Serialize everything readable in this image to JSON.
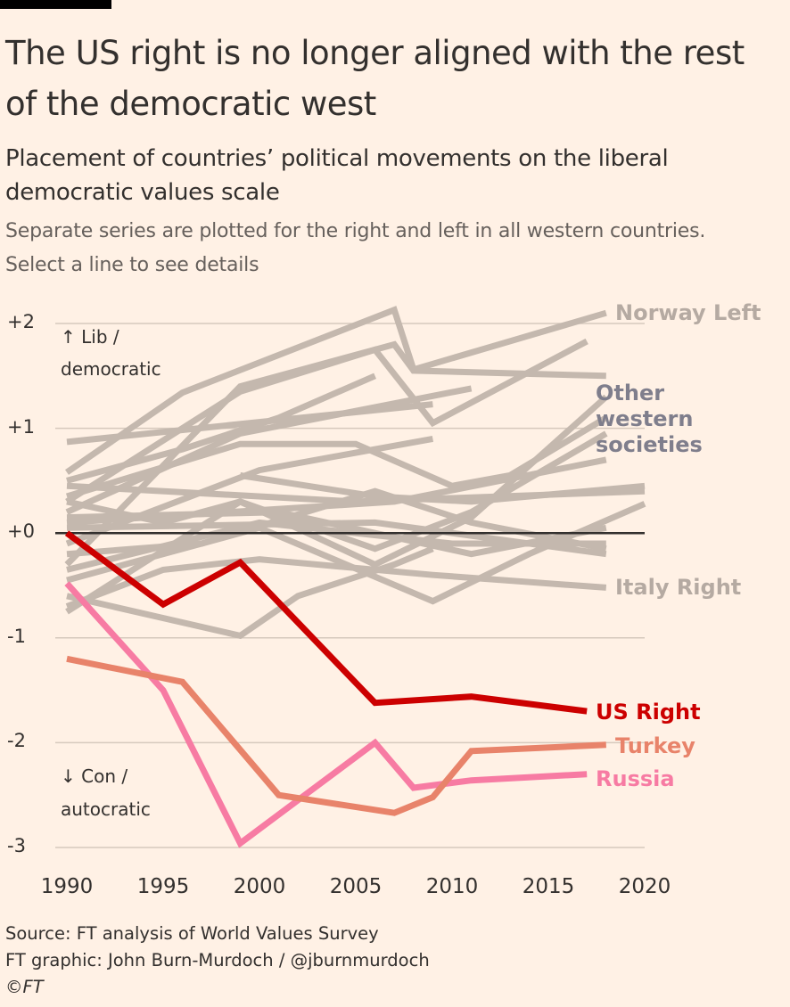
{
  "title_lines": [
    "The US right is no longer aligned with the rest",
    "of the democratic west"
  ],
  "subtitle_lines": [
    "Placement of countries’ political movements on the liberal",
    "democratic values scale"
  ],
  "note_lines": [
    "Separate series are plotted for the right and left in all western countries.",
    "Select a line to see details"
  ],
  "annotations": {
    "up": "↑ Lib /",
    "up2": "democratic",
    "down": "↓ Con /",
    "down2": "autocratic"
  },
  "footer": {
    "source": "Source: FT analysis of World Values Survey",
    "graphic": "FT graphic: John Burn-Murdoch / @jburnmurdoch",
    "copyright": "©FT"
  },
  "colors": {
    "background": "#fff1e5",
    "grey_series": "#c4b8ae",
    "us_right": "#cc0000",
    "turkey": "#e8836a",
    "russia": "#f77ba3",
    "other_label": "#7f7e8c",
    "grey_label": "#b5aaa2",
    "zero_line": "#33302e"
  },
  "chart_data": {
    "type": "line",
    "title": "The US right is no longer aligned with the rest of the democratic west",
    "xlabel": "",
    "ylabel": "Liberal democratic values scale",
    "xlim": [
      1990,
      2020
    ],
    "ylim": [
      -3,
      2
    ],
    "x_ticks": [
      "1990",
      "1995",
      "2000",
      "2005",
      "2010",
      "2015",
      "2020"
    ],
    "x_tick_values": [
      1990,
      1995,
      2000,
      2005,
      2010,
      2015,
      2020
    ],
    "y_ticks": [
      "+2",
      "+1",
      "+0",
      "-1",
      "-2",
      "-3"
    ],
    "y_tick_values": [
      2,
      1,
      0,
      -1,
      -2,
      -3
    ],
    "grid": true,
    "highlighted": [
      {
        "name": "US Right",
        "color": "#cc0000",
        "points": [
          [
            1990,
            0.0
          ],
          [
            1995,
            -0.68
          ],
          [
            1999,
            -0.28
          ],
          [
            2006,
            -1.62
          ],
          [
            2011,
            -1.56
          ],
          [
            2017,
            -1.7
          ]
        ]
      },
      {
        "name": "Turkey",
        "color": "#e8836a",
        "points": [
          [
            1990,
            -1.2
          ],
          [
            1996,
            -1.42
          ],
          [
            2001,
            -2.5
          ],
          [
            2007,
            -2.67
          ],
          [
            2009,
            -2.52
          ],
          [
            2011,
            -2.08
          ],
          [
            2018,
            -2.02
          ]
        ]
      },
      {
        "name": "Russia",
        "color": "#f77ba3",
        "points": [
          [
            1990,
            -0.48
          ],
          [
            1995,
            -1.5
          ],
          [
            1999,
            -2.96
          ],
          [
            2006,
            -2.0
          ],
          [
            2008,
            -2.43
          ],
          [
            2011,
            -2.36
          ],
          [
            2017,
            -2.3
          ]
        ]
      }
    ],
    "labeled_grey": [
      {
        "name": "Norway Left",
        "points": [
          [
            1990,
            0.58
          ],
          [
            1996,
            1.34
          ],
          [
            2007,
            2.13
          ],
          [
            2008,
            1.56
          ],
          [
            2018,
            2.1
          ]
        ]
      },
      {
        "name": "Italy Right",
        "points": [
          [
            1990,
            -0.7
          ],
          [
            1995,
            -0.35
          ],
          [
            2000,
            -0.25
          ],
          [
            2009,
            -0.4
          ],
          [
            2018,
            -0.52
          ]
        ]
      }
    ],
    "group_label": "Other western societies",
    "other_series": [
      [
        [
          1990,
          0.87
        ],
        [
          2009,
          1.23
        ]
      ],
      [
        [
          1990,
          0.3
        ],
        [
          1999,
          1.35
        ],
        [
          2006,
          1.75
        ],
        [
          2009,
          1.05
        ],
        [
          2017,
          1.83
        ]
      ],
      [
        [
          1990,
          -0.3
        ],
        [
          1999,
          1.4
        ],
        [
          2007,
          1.8
        ],
        [
          2008,
          1.55
        ],
        [
          2018,
          1.5
        ]
      ],
      [
        [
          1990,
          0.2
        ],
        [
          1999,
          0.95
        ],
        [
          2011,
          1.38
        ]
      ],
      [
        [
          1990,
          0.35
        ],
        [
          1999,
          0.85
        ],
        [
          2005,
          0.85
        ],
        [
          2010,
          0.45
        ],
        [
          2013,
          0.55
        ],
        [
          2018,
          1.1
        ]
      ],
      [
        [
          1990,
          -0.1
        ],
        [
          2000,
          0.6
        ],
        [
          2009,
          0.9
        ]
      ],
      [
        [
          1999,
          0.55
        ],
        [
          2006,
          0.35
        ],
        [
          2011,
          0.3
        ],
        [
          2020,
          0.45
        ]
      ],
      [
        [
          1990,
          0.3
        ],
        [
          1995,
          0.1
        ],
        [
          1999,
          0.3
        ],
        [
          2006,
          -0.3
        ],
        [
          2011,
          0.15
        ],
        [
          2018,
          1.3
        ]
      ],
      [
        [
          1990,
          -0.75
        ],
        [
          1999,
          0.3
        ],
        [
          2006,
          -0.15
        ],
        [
          2011,
          0.2
        ],
        [
          2018,
          0.95
        ]
      ],
      [
        [
          1990,
          -0.6
        ],
        [
          1999,
          -0.98
        ],
        [
          2002,
          -0.6
        ],
        [
          2007,
          -0.3
        ],
        [
          2009,
          -0.15
        ]
      ],
      [
        [
          1990,
          -0.45
        ],
        [
          2000,
          0.05
        ],
        [
          2009,
          -0.65
        ],
        [
          2014,
          -0.2
        ],
        [
          2020,
          0.28
        ]
      ],
      [
        [
          1990,
          0.45
        ],
        [
          2005,
          0.3
        ],
        [
          2020,
          0.4
        ]
      ],
      [
        [
          1990,
          0.05
        ],
        [
          2006,
          0.1
        ],
        [
          2018,
          -0.2
        ]
      ],
      [
        [
          1990,
          -0.35
        ],
        [
          2000,
          0.1
        ],
        [
          2010,
          -0.1
        ],
        [
          2018,
          -0.1
        ]
      ],
      [
        [
          1990,
          0.1
        ],
        [
          2007,
          0.3
        ],
        [
          2018,
          0.7
        ]
      ],
      [
        [
          1990,
          0.5
        ],
        [
          1996,
          0.8
        ],
        [
          2001,
          1.1
        ],
        [
          2006,
          1.5
        ]
      ],
      [
        [
          1990,
          -0.2
        ],
        [
          1997,
          -0.1
        ],
        [
          2006,
          0.4
        ],
        [
          2011,
          0.1
        ],
        [
          2018,
          -0.15
        ]
      ],
      [
        [
          1990,
          0.15
        ],
        [
          2001,
          0.2
        ],
        [
          2011,
          -0.2
        ],
        [
          2018,
          0.05
        ]
      ]
    ]
  }
}
